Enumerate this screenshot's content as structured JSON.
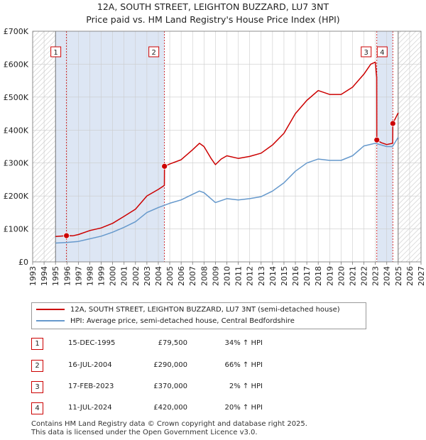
{
  "title_line1": "12A, SOUTH STREET, LEIGHTON BUZZARD, LU7 3NT",
  "title_line2": "Price paid vs. HM Land Registry's House Price Index (HPI)",
  "colors": {
    "property": "#cc0000",
    "hpi": "#6699cc",
    "shade": "#dde6f4",
    "grid": "#cccccc",
    "marker": "#cc0000"
  },
  "chart_data": {
    "type": "line",
    "title": "Price paid vs. HM Land Registry's House Price Index (HPI)",
    "xlabel": "",
    "ylabel": "",
    "xlim": [
      1993,
      2027
    ],
    "ylim": [
      0,
      700000
    ],
    "x_ticks": [
      1993,
      1994,
      1995,
      1996,
      1997,
      1998,
      1999,
      2000,
      2001,
      2002,
      2003,
      2004,
      2005,
      2006,
      2007,
      2008,
      2009,
      2010,
      2011,
      2012,
      2013,
      2014,
      2015,
      2016,
      2017,
      2018,
      2019,
      2020,
      2021,
      2022,
      2023,
      2024,
      2025,
      2026,
      2027
    ],
    "y_ticks": [
      0,
      100000,
      200000,
      300000,
      400000,
      500000,
      600000,
      700000
    ],
    "y_tick_labels": [
      "£0",
      "£100K",
      "£200K",
      "£300K",
      "£400K",
      "£500K",
      "£600K",
      "£700K"
    ],
    "grid": true,
    "shaded_ranges": [
      [
        1995.0,
        2004.54
      ],
      [
        2023.13,
        2024.53
      ]
    ],
    "hatched_ranges": [
      [
        1993,
        1995.0
      ],
      [
        2025.0,
        2027
      ]
    ],
    "series": [
      {
        "name": "12A, SOUTH STREET, LEIGHTON BUZZARD, LU7 3NT (semi-detached house)",
        "color": "#cc0000",
        "x": [
          1995.0,
          1995.96,
          1996.5,
          1997,
          1998,
          1999,
          2000,
          2001,
          2002,
          2003,
          2004,
          2004.53,
          2004.54,
          2005,
          2006,
          2007,
          2007.6,
          2008,
          2008.6,
          2009,
          2009.5,
          2010,
          2011,
          2012,
          2013,
          2014,
          2015,
          2016,
          2017,
          2018,
          2019,
          2020,
          2021,
          2022,
          2022.6,
          2023.0,
          2023.12,
          2023.13,
          2023.5,
          2024.0,
          2024.52,
          2024.53,
          2025.0
        ],
        "values": [
          77000,
          79500,
          79000,
          83000,
          95000,
          103000,
          117000,
          138000,
          160000,
          200000,
          220000,
          232000,
          290000,
          297000,
          310000,
          340000,
          360000,
          350000,
          315000,
          295000,
          312000,
          322000,
          314000,
          320000,
          330000,
          355000,
          390000,
          450000,
          490000,
          520000,
          508000,
          508000,
          530000,
          570000,
          600000,
          606000,
          560000,
          370000,
          362000,
          356000,
          360000,
          420000,
          452000
        ]
      },
      {
        "name": "HPI: Average price, semi-detached house, Central Bedfordshire",
        "color": "#6699cc",
        "x": [
          1995.0,
          1996,
          1997,
          1998,
          1999,
          2000,
          2001,
          2002,
          2003,
          2004,
          2005,
          2006,
          2007,
          2007.6,
          2008,
          2009,
          2010,
          2011,
          2012,
          2013,
          2014,
          2015,
          2016,
          2017,
          2018,
          2019,
          2020,
          2021,
          2022,
          2023,
          2024,
          2024.5,
          2025.0
        ],
        "values": [
          57000,
          59000,
          62000,
          70000,
          78000,
          90000,
          105000,
          122000,
          150000,
          165000,
          178000,
          188000,
          205000,
          215000,
          210000,
          180000,
          192000,
          188000,
          192000,
          198000,
          215000,
          240000,
          275000,
          300000,
          312000,
          308000,
          308000,
          322000,
          352000,
          360000,
          350000,
          350000,
          378000
        ]
      }
    ],
    "sales": [
      {
        "label": "1",
        "x": 1995.96,
        "value": 79500
      },
      {
        "label": "2",
        "x": 2004.54,
        "value": 290000
      },
      {
        "label": "3",
        "x": 2023.13,
        "value": 370000
      },
      {
        "label": "4",
        "x": 2024.53,
        "value": 420000
      }
    ]
  },
  "legend": {
    "property": "12A, SOUTH STREET, LEIGHTON BUZZARD, LU7 3NT (semi-detached house)",
    "hpi": "HPI: Average price, semi-detached house, Central Bedfordshire"
  },
  "transactions": [
    {
      "num": "1",
      "date": "15-DEC-1995",
      "price": "£79,500",
      "hpi": "34% ↑ HPI"
    },
    {
      "num": "2",
      "date": "16-JUL-2004",
      "price": "£290,000",
      "hpi": "66% ↑ HPI"
    },
    {
      "num": "3",
      "date": "17-FEB-2023",
      "price": "£370,000",
      "hpi": "2% ↑ HPI"
    },
    {
      "num": "4",
      "date": "11-JUL-2024",
      "price": "£420,000",
      "hpi": "20% ↑ HPI"
    }
  ],
  "footer_line1": "Contains HM Land Registry data © Crown copyright and database right 2025.",
  "footer_line2": "This data is licensed under the Open Government Licence v3.0."
}
